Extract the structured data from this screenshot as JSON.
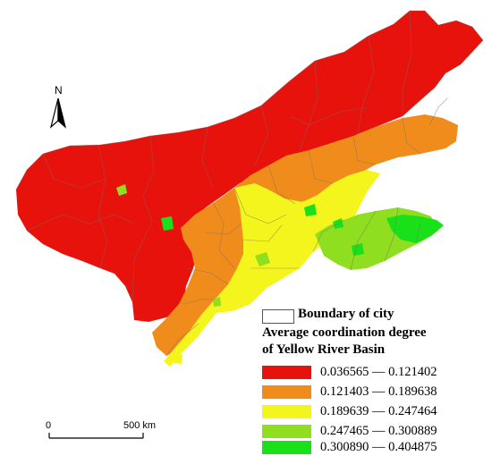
{
  "north_label": "N",
  "legend": {
    "boundary_label": "Boundary of city",
    "title_line1": "Average coordination degree",
    "title_line2": "of Yellow River Basin",
    "classes": [
      {
        "range": "0.036565 — 0.121402",
        "color": "#e8120c"
      },
      {
        "range": "0.121403 — 0.189638",
        "color": "#f08c1c"
      },
      {
        "range": "0.189639 — 0.247464",
        "color": "#f5f51e"
      },
      {
        "range": "0.247465 — 0.300889",
        "color": "#8fde20"
      },
      {
        "range": "0.300890 — 0.404875",
        "color": "#1ae01a"
      }
    ]
  },
  "scale_bar": {
    "start_label": "0",
    "end_label": "500 km"
  }
}
